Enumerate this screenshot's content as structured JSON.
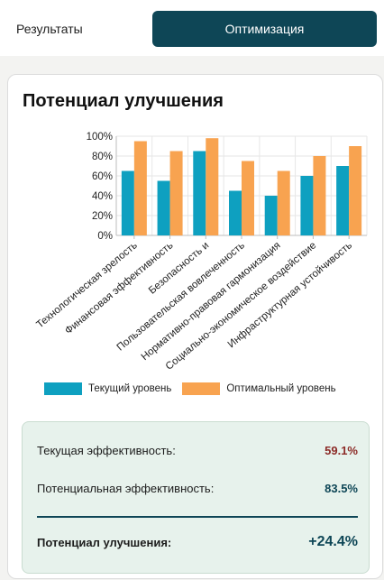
{
  "tabs": {
    "results_label": "Результаты",
    "optimization_label": "Оптимизация"
  },
  "card": {
    "title": "Потенциал улучшения"
  },
  "colors": {
    "current": "#0ea0c0",
    "optimal": "#f8a350",
    "accent": "#0e4656",
    "negative": "#8c2b27"
  },
  "chart_data": {
    "type": "bar",
    "categories": [
      "Технологическая зрелость",
      "Финансовая эффективность",
      "Безопасность и",
      "Пользовательская вовлеченность",
      "Нормативно-правовая гармонизация",
      "Социально-экономическое воздействие",
      "Инфраструктурная устойчивость"
    ],
    "series": [
      {
        "name": "Текущий уровень",
        "values": [
          65,
          55,
          85,
          45,
          40,
          60,
          70
        ]
      },
      {
        "name": "Оптимальный уровень",
        "values": [
          95,
          85,
          98,
          75,
          65,
          80,
          90
        ]
      }
    ],
    "yticks": [
      "0%",
      "20%",
      "40%",
      "60%",
      "80%",
      "100%"
    ],
    "ylim": [
      0,
      100
    ],
    "grid": true,
    "legend": "bottom"
  },
  "summary": {
    "current_label": "Текущая эффективность:",
    "current_value": "59.1%",
    "potential_label": "Потенциальная эффективность:",
    "potential_value": "83.5%",
    "gain_label": "Потенциал улучшения:",
    "gain_value": "+24.4%"
  }
}
